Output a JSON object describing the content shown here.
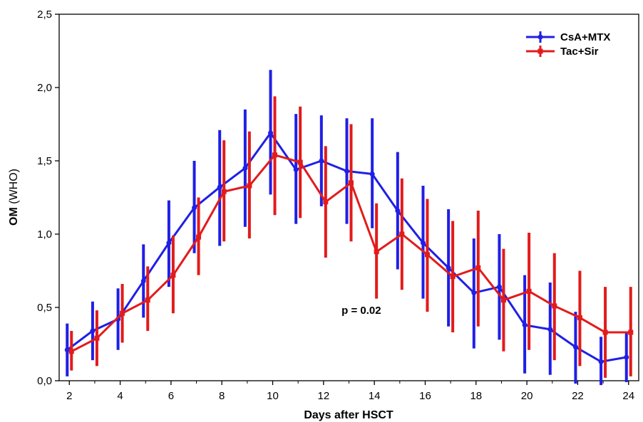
{
  "chart_data": {
    "type": "line",
    "xlabel": "Days after HSCT",
    "ylabel_bold": "OM",
    "ylabel_rest": " (WHO)",
    "xlim": [
      1.6,
      24.4
    ],
    "ylim": [
      0,
      2.5
    ],
    "x_ticks": [
      "2",
      "4",
      "6",
      "8",
      "10",
      "12",
      "14",
      "16",
      "18",
      "20",
      "22",
      "24"
    ],
    "y_ticks": [
      "0,0",
      "0,5",
      "1,0",
      "1,5",
      "2,0",
      "2,5"
    ],
    "x": [
      2,
      3,
      4,
      5,
      6,
      7,
      8,
      9,
      10,
      11,
      12,
      13,
      14,
      15,
      16,
      17,
      18,
      19,
      20,
      21,
      22,
      23,
      24
    ],
    "series": [
      {
        "name": "CsA+MTX",
        "color": "#1f1fe6",
        "values": [
          0.21,
          0.34,
          0.42,
          0.68,
          0.94,
          1.18,
          1.32,
          1.45,
          1.69,
          1.44,
          1.5,
          1.43,
          1.41,
          1.16,
          0.94,
          0.77,
          0.6,
          0.64,
          0.38,
          0.35,
          0.23,
          0.13,
          0.16
        ],
        "error_low": [
          0.03,
          0.14,
          0.21,
          0.43,
          0.64,
          0.87,
          0.92,
          1.05,
          1.27,
          1.07,
          1.19,
          1.07,
          1.04,
          0.76,
          0.56,
          0.37,
          0.22,
          0.28,
          0.05,
          0.04,
          -0.02,
          -0.03,
          -0.01
        ],
        "error_high": [
          0.39,
          0.54,
          0.63,
          0.93,
          1.23,
          1.5,
          1.71,
          1.85,
          2.12,
          1.82,
          1.81,
          1.79,
          1.79,
          1.56,
          1.33,
          1.17,
          0.97,
          1.0,
          0.72,
          0.67,
          0.47,
          0.3,
          0.33
        ]
      },
      {
        "name": "Tac+Sir",
        "color": "#e21b1b",
        "values": [
          0.2,
          0.29,
          0.46,
          0.55,
          0.72,
          0.98,
          1.29,
          1.33,
          1.54,
          1.49,
          1.22,
          1.35,
          0.88,
          1.0,
          0.86,
          0.71,
          0.77,
          0.55,
          0.61,
          0.51,
          0.43,
          0.33,
          0.33
        ],
        "error_low": [
          0.07,
          0.1,
          0.26,
          0.34,
          0.46,
          0.72,
          0.95,
          0.97,
          1.13,
          1.11,
          0.84,
          0.95,
          0.56,
          0.62,
          0.47,
          0.33,
          0.37,
          0.2,
          0.21,
          0.14,
          0.1,
          0.02,
          0.03
        ],
        "error_high": [
          0.34,
          0.48,
          0.66,
          0.78,
          0.99,
          1.25,
          1.64,
          1.7,
          1.94,
          1.87,
          1.6,
          1.75,
          1.21,
          1.38,
          1.24,
          1.09,
          1.16,
          0.9,
          1.01,
          0.87,
          0.75,
          0.64,
          0.64
        ]
      }
    ],
    "legend_position": "top-right",
    "annotation": "p = 0.02",
    "annotation_at": {
      "x": 14,
      "y": 0.48
    },
    "grid": false
  }
}
